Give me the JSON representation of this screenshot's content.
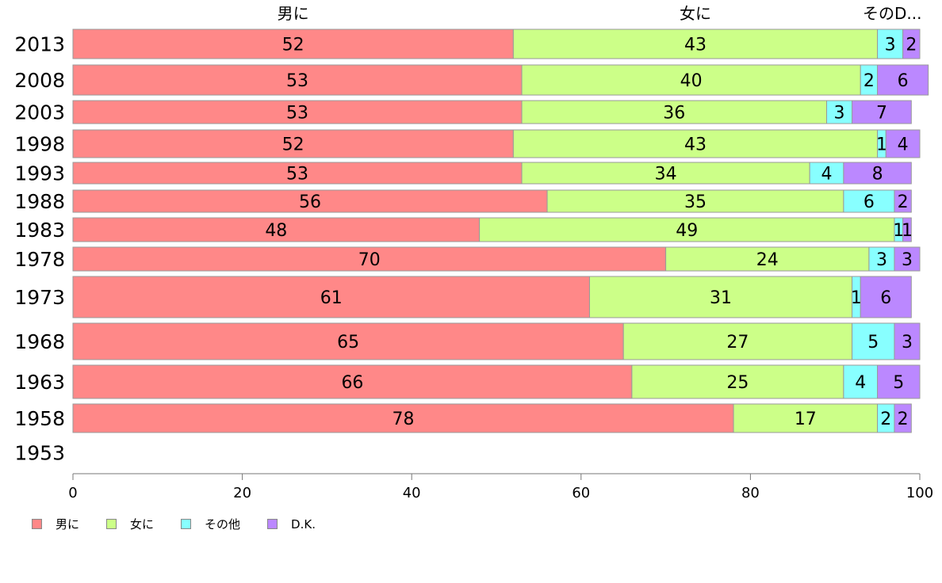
{
  "chart_data": {
    "type": "bar",
    "orientation": "horizontal",
    "stacked": true,
    "categories": [
      "2013",
      "2008",
      "2003",
      "1998",
      "1993",
      "1988",
      "1983",
      "1978",
      "1973",
      "1968",
      "1963",
      "1958",
      "1953"
    ],
    "series": [
      {
        "name": "男に",
        "color": "#ff8888",
        "values": [
          52,
          53,
          53,
          52,
          53,
          56,
          48,
          70,
          61,
          65,
          66,
          78,
          null
        ]
      },
      {
        "name": "女に",
        "color": "#ccff88",
        "values": [
          43,
          40,
          36,
          43,
          34,
          35,
          49,
          24,
          31,
          27,
          25,
          17,
          null
        ]
      },
      {
        "name": "その他",
        "color": "#88ffff",
        "values": [
          3,
          2,
          3,
          1,
          4,
          6,
          1,
          3,
          1,
          5,
          4,
          2,
          null
        ]
      },
      {
        "name": "D.K.",
        "color": "#bb88ff",
        "values": [
          2,
          6,
          7,
          4,
          8,
          2,
          1,
          3,
          6,
          3,
          5,
          2,
          null
        ]
      }
    ],
    "top_labels": [
      "男に",
      "女に",
      "その他",
      "D.K."
    ],
    "xlim": [
      0,
      100
    ],
    "xticks": [
      0,
      20,
      40,
      60,
      80,
      100
    ],
    "grid": false,
    "legend_position": "bottom-left"
  }
}
